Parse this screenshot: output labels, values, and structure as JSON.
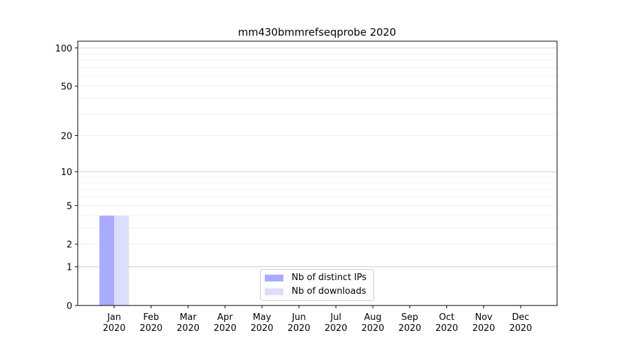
{
  "chart_data": {
    "type": "bar",
    "title": "mm430bmmrefseqprobe 2020",
    "xlabel": "",
    "ylabel": "",
    "yscale": "log(1+y)",
    "ylim": [
      0,
      113
    ],
    "yticks": [
      0,
      1,
      2,
      5,
      10,
      20,
      50,
      100
    ],
    "yminor": [
      3,
      4,
      6,
      7,
      8,
      9,
      30,
      40,
      60,
      70,
      80,
      90
    ],
    "grid": true,
    "legend_position": "bottom-center",
    "categories": [
      "Jan\n2020",
      "Feb\n2020",
      "Mar\n2020",
      "Apr\n2020",
      "May\n2020",
      "Jun\n2020",
      "Jul\n2020",
      "Aug\n2020",
      "Sep\n2020",
      "Oct\n2020",
      "Nov\n2020",
      "Dec\n2020"
    ],
    "series": [
      {
        "name": "Nb of distinct IPs",
        "color": "#aaaaff",
        "values": [
          4,
          0,
          0,
          0,
          0,
          0,
          0,
          0,
          0,
          0,
          0,
          0
        ]
      },
      {
        "name": "Nb of downloads",
        "color": "#ddddff",
        "values": [
          4,
          0,
          0,
          0,
          0,
          0,
          0,
          0,
          0,
          0,
          0,
          0
        ]
      }
    ]
  }
}
